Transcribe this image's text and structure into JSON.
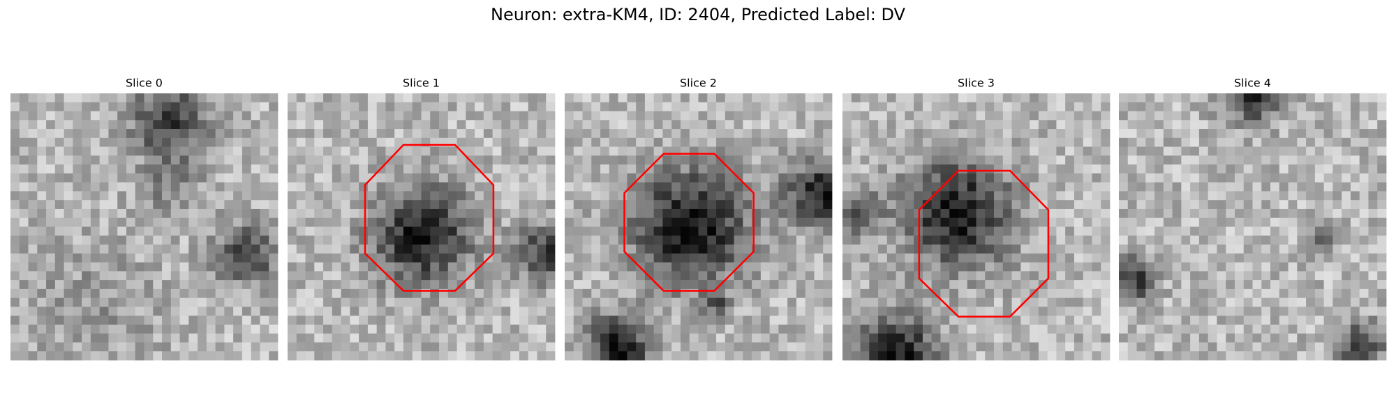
{
  "title": "Neuron: extra-KM4, ID: 2404, Predicted Label: DV",
  "panels": [
    {
      "title": "Slice 0"
    },
    {
      "title": "Slice 1"
    },
    {
      "title": "Slice 2"
    },
    {
      "title": "Slice 3"
    },
    {
      "title": "Slice 4"
    }
  ]
}
